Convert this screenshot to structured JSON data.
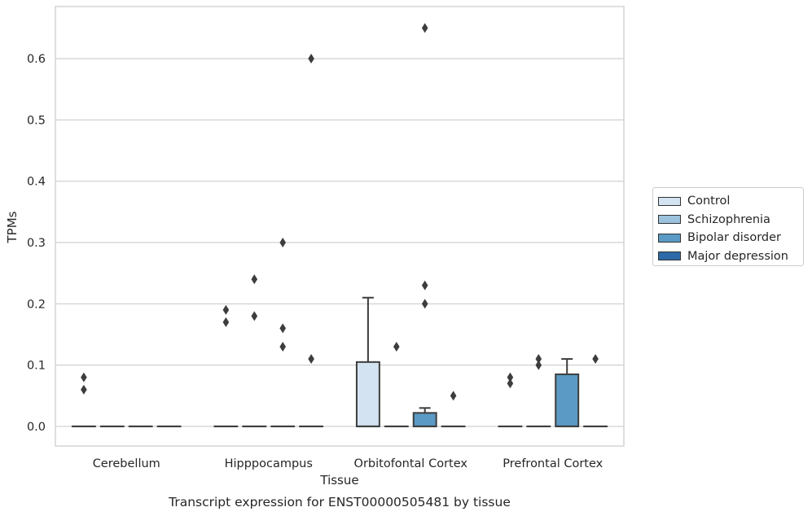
{
  "chart_data": {
    "type": "boxplot",
    "title": "Transcript expression for ENST00000505481 by tissue",
    "xlabel": "Tissue",
    "ylabel": "TPMs",
    "ylim": [
      -0.032,
      0.685
    ],
    "yticks": [
      "0.0",
      "0.1",
      "0.2",
      "0.3",
      "0.4",
      "0.5",
      "0.6"
    ],
    "grid": true,
    "legend_position": "right",
    "categories": [
      "Cerebellum",
      "Hipppocampus",
      "Orbitofontal Cortex",
      "Prefrontal Cortex"
    ],
    "series": [
      {
        "name": "Control",
        "color": "#d4e3f1",
        "boxes": [
          {
            "q1": 0,
            "median": 0,
            "q3": 0,
            "whislo": 0,
            "whishi": 0,
            "fliers": [
              0.08,
              0.06
            ]
          },
          {
            "q1": 0,
            "median": 0,
            "q3": 0,
            "whislo": 0,
            "whishi": 0,
            "fliers": [
              0.19,
              0.17
            ]
          },
          {
            "q1": 0,
            "median": 0,
            "q3": 0.105,
            "whislo": 0,
            "whishi": 0.21,
            "fliers": []
          },
          {
            "q1": 0,
            "median": 0,
            "q3": 0,
            "whislo": 0,
            "whishi": 0,
            "fliers": [
              0.08,
              0.07
            ]
          }
        ]
      },
      {
        "name": "Schizophrenia",
        "color": "#9cc2de",
        "boxes": [
          {
            "q1": 0,
            "median": 0,
            "q3": 0,
            "whislo": 0,
            "whishi": 0,
            "fliers": []
          },
          {
            "q1": 0,
            "median": 0,
            "q3": 0,
            "whislo": 0,
            "whishi": 0,
            "fliers": [
              0.24,
              0.18
            ]
          },
          {
            "q1": 0,
            "median": 0,
            "q3": 0,
            "whislo": 0,
            "whishi": 0,
            "fliers": [
              0.13
            ]
          },
          {
            "q1": 0,
            "median": 0,
            "q3": 0,
            "whislo": 0,
            "whishi": 0,
            "fliers": [
              0.11,
              0.1
            ]
          }
        ]
      },
      {
        "name": "Bipolar disorder",
        "color": "#5b9ac5",
        "boxes": [
          {
            "q1": 0,
            "median": 0,
            "q3": 0,
            "whislo": 0,
            "whishi": 0,
            "fliers": []
          },
          {
            "q1": 0,
            "median": 0,
            "q3": 0,
            "whislo": 0,
            "whishi": 0,
            "fliers": [
              0.3,
              0.16,
              0.13
            ]
          },
          {
            "q1": 0,
            "median": 0,
            "q3": 0.022,
            "whislo": 0,
            "whishi": 0.03,
            "fliers": [
              0.65,
              0.23,
              0.2
            ]
          },
          {
            "q1": 0,
            "median": 0,
            "q3": 0.085,
            "whislo": 0,
            "whishi": 0.11,
            "fliers": []
          }
        ]
      },
      {
        "name": "Major depression",
        "color": "#2c6aa8",
        "boxes": [
          {
            "q1": 0,
            "median": 0,
            "q3": 0,
            "whislo": 0,
            "whishi": 0,
            "fliers": []
          },
          {
            "q1": 0,
            "median": 0,
            "q3": 0,
            "whislo": 0,
            "whishi": 0,
            "fliers": [
              0.6,
              0.11
            ]
          },
          {
            "q1": 0,
            "median": 0,
            "q3": 0,
            "whislo": 0,
            "whishi": 0,
            "fliers": [
              0.05
            ]
          },
          {
            "q1": 0,
            "median": 0,
            "q3": 0,
            "whislo": 0,
            "whishi": 0,
            "fliers": [
              0.11
            ]
          }
        ]
      }
    ]
  }
}
